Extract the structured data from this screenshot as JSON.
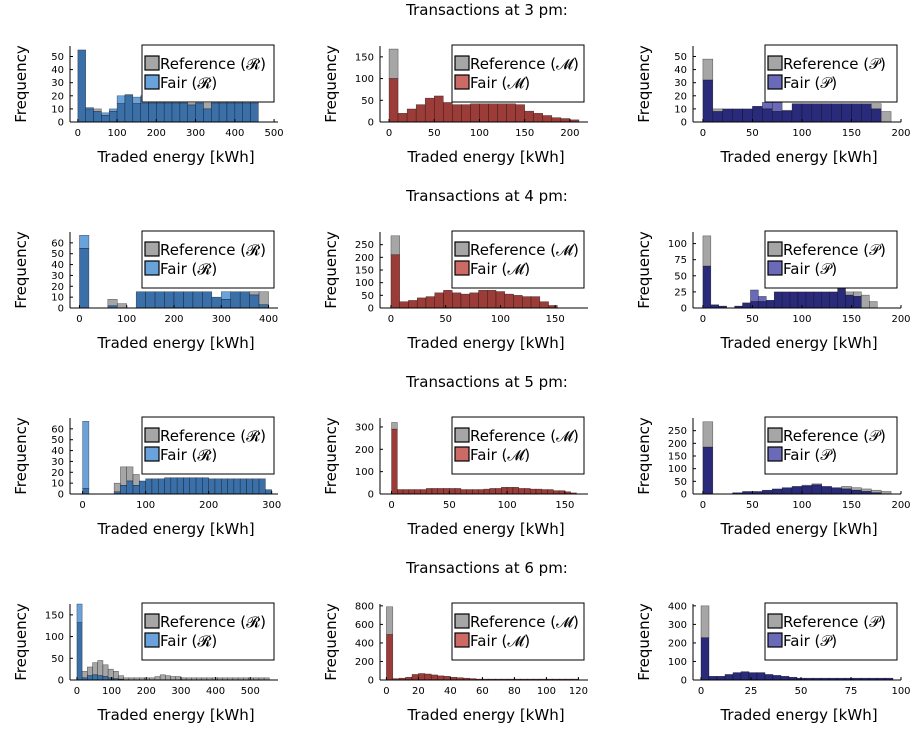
{
  "colors": {
    "reference": "#a6a6a6",
    "R": "#6aa2dc",
    "M": "#cc6b66",
    "P": "#6a6ab8",
    "overlap_R": "#3a6fa8",
    "overlap_M": "#9c3c38",
    "overlap_P": "#2a2a7a"
  },
  "chart_data": [
    {
      "type": "bar",
      "row_title": "Transactions at 3 pm:",
      "xlabel": "Traded energy [kWh]",
      "ylabel": "Frequency",
      "legend": [
        "Reference (𝓡)",
        "Fair (𝓡)"
      ],
      "legend_placement": "top-right",
      "market": "R",
      "xlim": [
        -20,
        510
      ],
      "ylim": [
        0,
        58
      ],
      "xticks": [
        0,
        100,
        200,
        300,
        400,
        500
      ],
      "yticks": [
        0,
        10,
        20,
        30,
        40,
        50
      ],
      "bin_width": 20,
      "bin_start": 0,
      "reference": [
        55,
        10,
        10,
        5,
        8,
        14,
        20,
        14,
        14,
        14,
        14,
        14,
        14,
        14,
        14,
        14,
        14,
        14,
        14,
        14,
        14,
        14,
        14,
        0
      ],
      "fair": [
        55,
        11,
        8,
        7,
        10,
        20,
        21,
        19,
        20,
        15,
        15,
        15,
        15,
        15,
        13,
        17,
        10,
        15,
        15,
        15,
        15,
        16,
        15,
        0
      ]
    },
    {
      "type": "bar",
      "row_title": "",
      "xlabel": "Traded energy [kWh]",
      "ylabel": "Frequency",
      "legend": [
        "Reference (𝓜)",
        "Fair (𝓜)"
      ],
      "legend_placement": "top-right",
      "market": "M",
      "xlim": [
        -10,
        220
      ],
      "ylim": [
        0,
        175
      ],
      "xticks": [
        0,
        50,
        100,
        150,
        200
      ],
      "yticks": [
        0,
        50,
        100,
        150
      ],
      "bin_width": 10,
      "bin_start": 0,
      "reference": [
        168,
        20,
        30,
        40,
        55,
        60,
        45,
        40,
        40,
        42,
        42,
        42,
        42,
        42,
        40,
        25,
        20,
        15,
        10,
        8,
        5
      ],
      "fair": [
        100,
        20,
        30,
        40,
        55,
        60,
        45,
        40,
        40,
        42,
        42,
        42,
        42,
        42,
        40,
        25,
        20,
        15,
        10,
        8,
        5
      ]
    },
    {
      "type": "bar",
      "row_title": "",
      "xlabel": "Traded energy [kWh]",
      "ylabel": "Frequency",
      "legend": [
        "Reference (𝒫)",
        "Fair (𝒫)"
      ],
      "legend_placement": "top-right",
      "market": "P",
      "xlim": [
        -10,
        200
      ],
      "ylim": [
        0,
        58
      ],
      "xticks": [
        0,
        50,
        100,
        150,
        200
      ],
      "yticks": [
        0,
        10,
        20,
        30,
        40,
        50
      ],
      "bin_width": 10,
      "bin_start": 0,
      "reference": [
        48,
        10,
        10,
        10,
        10,
        12,
        10,
        8,
        8,
        14,
        14,
        14,
        14,
        14,
        14,
        14,
        14,
        14,
        8
      ],
      "fair": [
        32,
        8,
        10,
        10,
        10,
        12,
        15,
        15,
        9,
        14,
        14,
        14,
        14,
        14,
        14,
        14,
        14,
        10,
        0
      ]
    },
    {
      "type": "bar",
      "row_title": "Transactions at 4 pm:",
      "xlabel": "Traded energy [kWh]",
      "ylabel": "Frequency",
      "legend": [
        "Reference (𝓡)",
        "Fair (𝓡)"
      ],
      "legend_placement": "top-right",
      "market": "R",
      "xlim": [
        -20,
        420
      ],
      "ylim": [
        0,
        70
      ],
      "xticks": [
        0,
        100,
        200,
        300,
        400
      ],
      "yticks": [
        0,
        10,
        20,
        30,
        40,
        50,
        60
      ],
      "bin_width": 20,
      "bin_start": 0,
      "reference": [
        55,
        0,
        0,
        8,
        4,
        0,
        15,
        15,
        15,
        15,
        15,
        15,
        15,
        15,
        10,
        8,
        15,
        15,
        15,
        15
      ],
      "fair": [
        67,
        0,
        0,
        2,
        0,
        0,
        15,
        15,
        15,
        15,
        15,
        15,
        15,
        15,
        10,
        15,
        15,
        15,
        12,
        3
      ]
    },
    {
      "type": "bar",
      "row_title": "",
      "xlabel": "Traded energy [kWh]",
      "ylabel": "Frequency",
      "legend": [
        "Reference (𝓜)",
        "Fair (𝓜)"
      ],
      "legend_placement": "top-right",
      "market": "M",
      "xlim": [
        -10,
        180
      ],
      "ylim": [
        0,
        300
      ],
      "xticks": [
        0,
        50,
        100,
        150
      ],
      "yticks": [
        0,
        50,
        100,
        150,
        200,
        250
      ],
      "bin_width": 8,
      "bin_start": 0,
      "reference": [
        285,
        25,
        30,
        40,
        45,
        60,
        70,
        60,
        55,
        60,
        70,
        70,
        65,
        55,
        50,
        45,
        45,
        25,
        10
      ],
      "fair": [
        210,
        25,
        30,
        40,
        45,
        60,
        70,
        60,
        55,
        60,
        70,
        70,
        65,
        55,
        50,
        45,
        45,
        25,
        10
      ]
    },
    {
      "type": "bar",
      "row_title": "",
      "xlabel": "Traded energy [kWh]",
      "ylabel": "Frequency",
      "legend": [
        "Reference (𝒫)",
        "Fair (𝒫)"
      ],
      "legend_placement": "top-right",
      "market": "P",
      "xlim": [
        -10,
        200
      ],
      "ylim": [
        0,
        118
      ],
      "xticks": [
        0,
        50,
        100,
        150,
        200
      ],
      "yticks": [
        0,
        25,
        50,
        75,
        100
      ],
      "bin_width": 8,
      "bin_start": 0,
      "reference": [
        112,
        5,
        3,
        0,
        3,
        8,
        10,
        10,
        12,
        25,
        25,
        25,
        25,
        25,
        25,
        25,
        25,
        30,
        25,
        25,
        20,
        10
      ],
      "fair": [
        65,
        5,
        3,
        0,
        3,
        8,
        28,
        18,
        12,
        25,
        25,
        25,
        25,
        25,
        25,
        25,
        25,
        30,
        20,
        18,
        0,
        0
      ]
    },
    {
      "type": "bar",
      "row_title": "Transactions at 5 pm:",
      "xlabel": "Traded energy [kWh]",
      "ylabel": "Frequency",
      "legend": [
        "Reference (𝓡)",
        "Fair (𝓡)"
      ],
      "legend_placement": "top-right",
      "market": "R",
      "xlim": [
        -20,
        310
      ],
      "ylim": [
        0,
        70
      ],
      "xticks": [
        0,
        100,
        200,
        300
      ],
      "yticks": [
        0,
        10,
        20,
        30,
        40,
        50,
        60
      ],
      "bin_width": 10,
      "bin_start": 0,
      "reference": [
        5,
        0,
        0,
        0,
        0,
        10,
        25,
        25,
        18,
        12,
        14,
        14,
        14,
        15,
        15,
        15,
        15,
        15,
        15,
        15,
        14,
        14,
        14,
        14,
        14,
        14,
        14,
        14,
        14,
        4
      ],
      "fair": [
        67,
        0,
        0,
        0,
        0,
        2,
        8,
        12,
        8,
        12,
        14,
        14,
        14,
        15,
        15,
        15,
        15,
        15,
        15,
        15,
        14,
        14,
        14,
        14,
        14,
        14,
        14,
        14,
        14,
        4
      ]
    },
    {
      "type": "bar",
      "row_title": "",
      "xlabel": "Traded energy [kWh]",
      "ylabel": "Frequency",
      "legend": [
        "Reference (𝓜)",
        "Fair (𝓜)"
      ],
      "legend_placement": "top-right",
      "market": "M",
      "xlim": [
        -10,
        170
      ],
      "ylim": [
        0,
        340
      ],
      "xticks": [
        0,
        50,
        100,
        150
      ],
      "yticks": [
        0,
        100,
        200,
        300
      ],
      "bin_width": 5,
      "bin_start": 0,
      "reference": [
        320,
        20,
        20,
        20,
        20,
        20,
        25,
        25,
        25,
        25,
        25,
        25,
        20,
        20,
        20,
        20,
        22,
        25,
        25,
        30,
        30,
        30,
        25,
        25,
        22,
        22,
        20,
        20,
        15,
        15,
        10,
        5
      ],
      "fair": [
        290,
        20,
        20,
        20,
        20,
        20,
        25,
        25,
        25,
        25,
        25,
        25,
        20,
        20,
        20,
        20,
        22,
        25,
        25,
        30,
        30,
        30,
        25,
        25,
        22,
        22,
        20,
        20,
        15,
        15,
        10,
        5
      ]
    },
    {
      "type": "bar",
      "row_title": "",
      "xlabel": "Traded energy [kWh]",
      "ylabel": "Frequency",
      "legend": [
        "Reference (𝒫)",
        "Fair (𝒫)"
      ],
      "legend_placement": "top-right",
      "market": "P",
      "xlim": [
        -10,
        200
      ],
      "ylim": [
        0,
        300
      ],
      "xticks": [
        0,
        50,
        100,
        150,
        200
      ],
      "yticks": [
        0,
        50,
        100,
        150,
        200,
        250
      ],
      "bin_width": 10,
      "bin_start": 0,
      "reference": [
        285,
        0,
        0,
        5,
        10,
        10,
        15,
        20,
        25,
        30,
        30,
        35,
        30,
        25,
        30,
        25,
        20,
        15,
        10
      ],
      "fair": [
        185,
        0,
        0,
        5,
        10,
        10,
        15,
        20,
        25,
        30,
        35,
        40,
        30,
        25,
        20,
        15,
        10,
        5,
        0
      ]
    },
    {
      "type": "bar",
      "row_title": "Transactions at 6 pm:",
      "xlabel": "Traded energy [kWh]",
      "ylabel": "Frequency",
      "legend": [
        "Reference (𝓡)",
        "Fair (𝓡)"
      ],
      "legend_placement": "top-right",
      "market": "R",
      "xlim": [
        -20,
        580
      ],
      "ylim": [
        0,
        175
      ],
      "xticks": [
        0,
        100,
        200,
        300,
        400,
        500
      ],
      "yticks": [
        0,
        50,
        100,
        150
      ],
      "bin_width": 15,
      "bin_start": 0,
      "reference": [
        132,
        20,
        30,
        40,
        45,
        35,
        25,
        20,
        10,
        5,
        5,
        5,
        5,
        5,
        5,
        8,
        12,
        10,
        8,
        8,
        5,
        5,
        5,
        5,
        5,
        5,
        5,
        5,
        5,
        5,
        5,
        5,
        5,
        5,
        5,
        5,
        5
      ],
      "fair": [
        175,
        5,
        10,
        12,
        10,
        8,
        5,
        3,
        2,
        0,
        0,
        0,
        0,
        0,
        0,
        0,
        0,
        0,
        0,
        0,
        0,
        0,
        0,
        0,
        0,
        0,
        0,
        0,
        0,
        0,
        0,
        0,
        0,
        0,
        0,
        0,
        0
      ]
    },
    {
      "type": "bar",
      "row_title": "",
      "xlabel": "Traded energy [kWh]",
      "ylabel": "Frequency",
      "legend": [
        "Reference (𝓜)",
        "Fair (𝓜)"
      ],
      "legend_placement": "top-right",
      "market": "M",
      "xlim": [
        -4,
        126
      ],
      "ylim": [
        0,
        820
      ],
      "xticks": [
        0,
        20,
        40,
        60,
        80,
        100,
        120
      ],
      "yticks": [
        0,
        200,
        400,
        600,
        800
      ],
      "bin_width": 4,
      "bin_start": 0,
      "reference": [
        790,
        15,
        20,
        30,
        60,
        70,
        65,
        55,
        45,
        40,
        30,
        25,
        20,
        15,
        10,
        10,
        10,
        10,
        10,
        10,
        10,
        10,
        10,
        10,
        10,
        10,
        10,
        10,
        10,
        10
      ],
      "fair": [
        490,
        15,
        20,
        30,
        60,
        70,
        65,
        55,
        45,
        40,
        30,
        25,
        20,
        15,
        10,
        10,
        10,
        10,
        10,
        10,
        10,
        10,
        10,
        10,
        10,
        10,
        10,
        10,
        10,
        10
      ]
    },
    {
      "type": "bar",
      "row_title": "",
      "xlabel": "Traded energy [kWh]",
      "ylabel": "Frequency",
      "legend": [
        "Reference (𝒫)",
        "Fair (𝒫)"
      ],
      "legend_placement": "top-right",
      "market": "P",
      "xlim": [
        -4,
        100
      ],
      "ylim": [
        0,
        410
      ],
      "xticks": [
        0,
        25,
        50,
        75,
        100
      ],
      "yticks": [
        0,
        100,
        200,
        300,
        400
      ],
      "bin_width": 4,
      "bin_start": 0,
      "reference": [
        400,
        20,
        20,
        30,
        40,
        45,
        40,
        40,
        30,
        25,
        20,
        15,
        10,
        10,
        10,
        10,
        10,
        10,
        10,
        10,
        10,
        10,
        10,
        10
      ],
      "fair": [
        228,
        20,
        20,
        30,
        40,
        45,
        40,
        40,
        30,
        25,
        20,
        15,
        10,
        10,
        10,
        10,
        10,
        10,
        10,
        10,
        10,
        10,
        10,
        10
      ]
    }
  ]
}
